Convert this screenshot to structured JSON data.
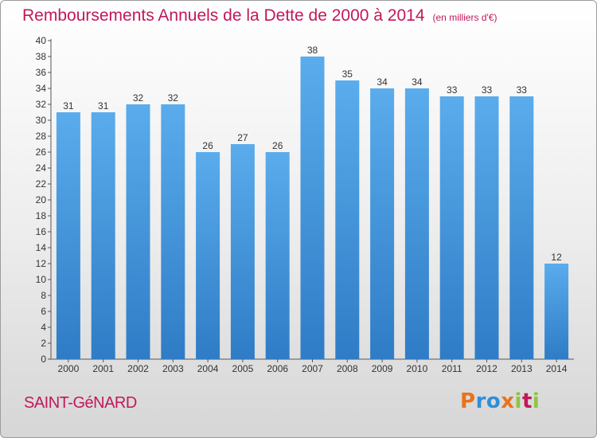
{
  "chart_data": {
    "type": "bar",
    "title": "Remboursements Annuels de la Dette de 2000 à 2014",
    "unit_note": "(en milliers d'€)",
    "categories": [
      "2000",
      "2001",
      "2002",
      "2003",
      "2004",
      "2005",
      "2006",
      "2007",
      "2008",
      "2009",
      "2010",
      "2011",
      "2012",
      "2013",
      "2014"
    ],
    "values": [
      31,
      31,
      32,
      32,
      26,
      27,
      26,
      38,
      35,
      34,
      34,
      33,
      33,
      33,
      12
    ],
    "xlabel": "",
    "ylabel": "",
    "ylim": [
      0,
      40
    ],
    "ytick_step": 2,
    "grid": false,
    "bar_color": "#4a9fe0"
  },
  "location": "SAINT-GéNARD",
  "brand": {
    "letters": [
      "P",
      "r",
      "o",
      "x",
      "i",
      "t",
      "i"
    ],
    "colors": [
      "#e8731b",
      "#2e8fd8",
      "#2e8fd8",
      "#e8731b",
      "#8dc63f",
      "#c2185b",
      "#8dc63f"
    ]
  },
  "colors": {
    "title": "#c2185b",
    "axis": "#555555",
    "text": "#333333"
  }
}
